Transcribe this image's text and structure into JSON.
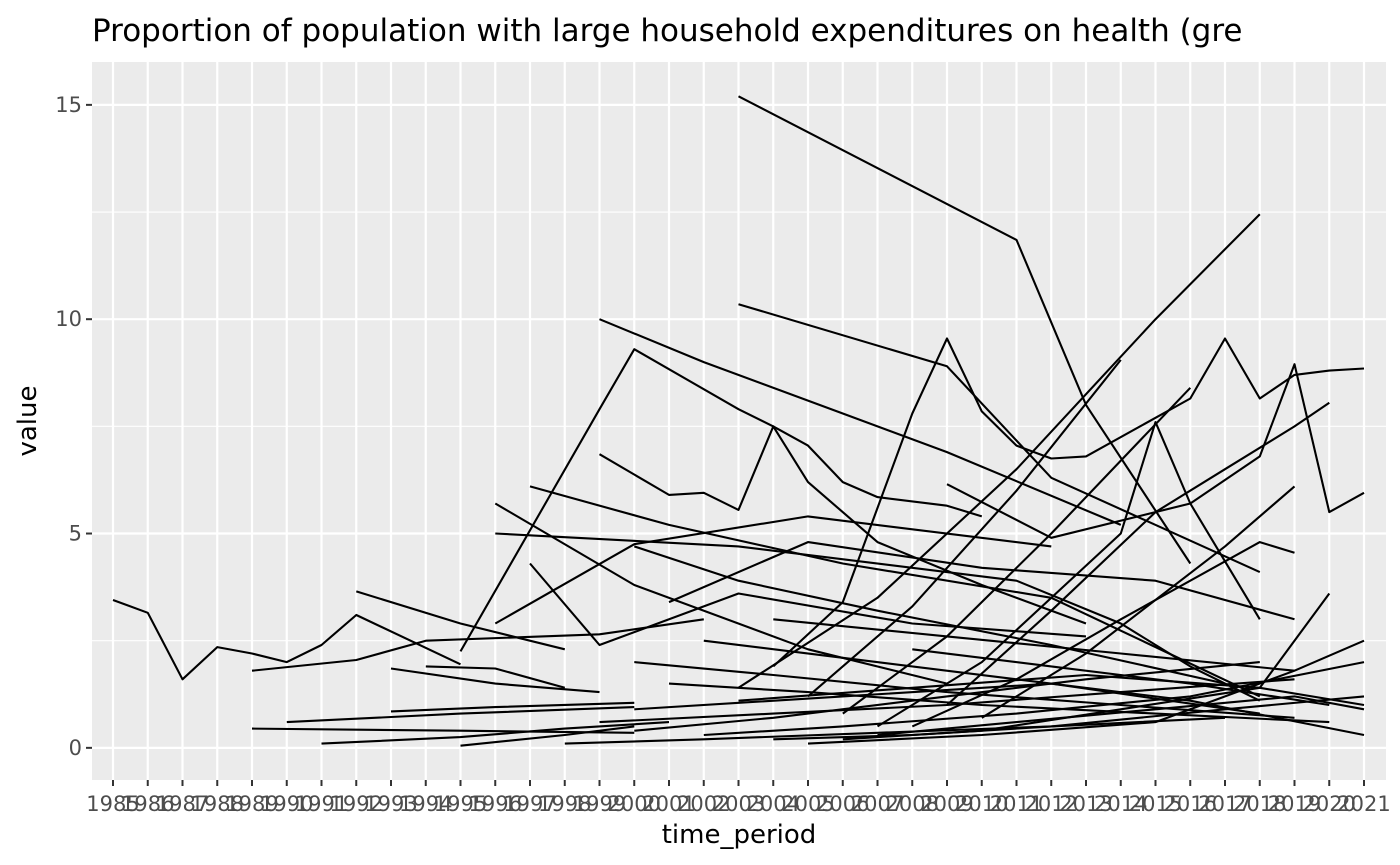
{
  "chart_data": {
    "type": "line",
    "title": "Proportion of population with large household expenditures on health (gre",
    "xlabel": "time_period",
    "ylabel": "value",
    "x_ticks": [
      "1985",
      "1986",
      "1987",
      "1988",
      "1989",
      "1990",
      "1991",
      "1992",
      "1993",
      "1994",
      "1995",
      "1996",
      "1997",
      "1998",
      "1999",
      "2000",
      "2001",
      "2002",
      "2003",
      "2004",
      "2005",
      "2006",
      "2007",
      "2008",
      "2009",
      "2010",
      "2011",
      "2012",
      "2013",
      "2014",
      "2015",
      "2016",
      "2017",
      "2018",
      "2019",
      "2020",
      "2021"
    ],
    "y_ticks": [
      0,
      5,
      10,
      15
    ],
    "ylim": [
      -0.75,
      16.0
    ],
    "grid": true,
    "panel_background": "#ebebeb",
    "grid_color": "#ffffff",
    "line_color": "#000000",
    "series": [
      {
        "x": [
          1985,
          1986,
          1987,
          1988,
          1989,
          1990,
          1991,
          1992,
          1995
        ],
        "y": [
          3.45,
          3.15,
          1.6,
          2.35,
          2.2,
          2.0,
          2.4,
          3.1,
          1.95
        ]
      },
      {
        "x": [
          1992,
          1995,
          1998
        ],
        "y": [
          3.65,
          2.9,
          2.3
        ]
      },
      {
        "x": [
          1989,
          1992,
          1994,
          1999,
          2002
        ],
        "y": [
          1.8,
          2.05,
          2.5,
          2.65,
          3.0
        ]
      },
      {
        "x": [
          1989,
          1995,
          2000
        ],
        "y": [
          0.45,
          0.4,
          0.35
        ]
      },
      {
        "x": [
          1990,
          1995,
          2000
        ],
        "y": [
          0.6,
          0.8,
          0.95
        ]
      },
      {
        "x": [
          1991,
          1995,
          1998,
          2001
        ],
        "y": [
          0.1,
          0.25,
          0.45,
          0.6
        ]
      },
      {
        "x": [
          1995,
          1998,
          2000
        ],
        "y": [
          0.05,
          0.3,
          0.5
        ]
      },
      {
        "x": [
          1993,
          1996,
          1999
        ],
        "y": [
          1.85,
          1.5,
          1.3
        ]
      },
      {
        "x": [
          1993,
          1996,
          2000
        ],
        "y": [
          0.85,
          0.95,
          1.05
        ]
      },
      {
        "x": [
          1994,
          1996,
          1998
        ],
        "y": [
          1.9,
          1.85,
          1.4
        ]
      },
      {
        "x": [
          1995,
          1999,
          2000,
          2003,
          2004,
          2005,
          2006,
          2007,
          2009,
          2010
        ],
        "y": [
          2.25,
          7.9,
          9.3,
          7.9,
          7.5,
          7.05,
          6.2,
          5.85,
          5.65,
          5.4
        ]
      },
      {
        "x": [
          1996,
          2003,
          2011,
          2014,
          2016,
          2018
        ],
        "y": [
          5.0,
          4.7,
          3.9,
          2.9,
          1.9,
          1.1
        ]
      },
      {
        "x": [
          1996,
          2000,
          2005,
          2009
        ],
        "y": [
          5.7,
          3.8,
          2.3,
          1.5
        ]
      },
      {
        "x": [
          1996,
          2000,
          2005,
          2012
        ],
        "y": [
          2.9,
          4.75,
          5.4,
          4.7
        ]
      },
      {
        "x": [
          1997,
          2001,
          2006,
          2012,
          2018
        ],
        "y": [
          6.1,
          5.2,
          4.3,
          3.5,
          1.2
        ]
      },
      {
        "x": [
          1997,
          1999,
          2003,
          2008,
          2013
        ],
        "y": [
          4.3,
          2.4,
          3.6,
          2.9,
          2.6
        ]
      },
      {
        "x": [
          1999,
          2001,
          2002,
          2003,
          2004,
          2005,
          2007,
          2010,
          2013
        ],
        "y": [
          6.85,
          5.9,
          5.95,
          5.55,
          7.5,
          6.2,
          4.8,
          3.8,
          2.9
        ]
      },
      {
        "x": [
          1999,
          2002,
          2006,
          2009,
          2014
        ],
        "y": [
          10.0,
          9.0,
          7.8,
          6.9,
          5.2
        ]
      },
      {
        "x": [
          2003,
          2011,
          2013,
          2016
        ],
        "y": [
          15.2,
          11.85,
          8.0,
          4.3
        ]
      },
      {
        "x": [
          2003,
          2009,
          2012,
          2018
        ],
        "y": [
          10.35,
          8.9,
          6.3,
          4.1
        ]
      },
      {
        "x": [
          2004,
          2006,
          2008,
          2009,
          2010,
          2011,
          2012,
          2013,
          2016,
          2017,
          2018,
          2019,
          2020,
          2021
        ],
        "y": [
          1.9,
          3.4,
          7.8,
          9.55,
          7.85,
          7.05,
          6.75,
          6.8,
          8.15,
          9.55,
          8.15,
          8.7,
          8.8,
          8.85
        ]
      },
      {
        "x": [
          2003,
          2007,
          2011,
          2015,
          2018
        ],
        "y": [
          1.4,
          3.5,
          6.5,
          10.0,
          12.45
        ]
      },
      {
        "x": [
          2005,
          2008,
          2011,
          2014
        ],
        "y": [
          1.2,
          3.3,
          6.0,
          9.05
        ]
      },
      {
        "x": [
          2006,
          2009,
          2012,
          2016
        ],
        "y": [
          0.8,
          2.6,
          5.0,
          8.4
        ]
      },
      {
        "x": [
          2007,
          2010,
          2014,
          2015,
          2016,
          2018
        ],
        "y": [
          0.5,
          2.0,
          5.0,
          7.6,
          5.7,
          3.0
        ]
      },
      {
        "x": [
          2009,
          2012,
          2015,
          2017,
          2019,
          2020
        ],
        "y": [
          1.0,
          3.2,
          5.5,
          6.5,
          7.5,
          8.05
        ]
      },
      {
        "x": [
          2009,
          2012,
          2016,
          2018,
          2019,
          2020,
          2021
        ],
        "y": [
          6.15,
          4.9,
          5.7,
          6.8,
          8.95,
          5.5,
          5.95
        ]
      },
      {
        "x": [
          2010,
          2013,
          2017,
          2019
        ],
        "y": [
          0.7,
          2.2,
          4.7,
          6.1
        ]
      },
      {
        "x": [
          2008,
          2011,
          2014,
          2018,
          2019
        ],
        "y": [
          0.5,
          1.6,
          3.0,
          4.8,
          4.55
        ]
      },
      {
        "x": [
          2001,
          2005,
          2010,
          2015,
          2019
        ],
        "y": [
          3.4,
          4.8,
          4.2,
          3.9,
          3.0
        ]
      },
      {
        "x": [
          2000,
          2004,
          2008,
          2013,
          2018
        ],
        "y": [
          0.4,
          0.7,
          1.1,
          1.6,
          2.0
        ]
      },
      {
        "x": [
          2000,
          2003,
          2007,
          2012,
          2017
        ],
        "y": [
          4.7,
          3.9,
          3.2,
          2.4,
          1.5
        ]
      },
      {
        "x": [
          2002,
          2006,
          2011,
          2016,
          2021
        ],
        "y": [
          0.3,
          0.5,
          0.8,
          1.2,
          2.0
        ]
      },
      {
        "x": [
          2004,
          2008,
          2012,
          2017,
          2021
        ],
        "y": [
          0.2,
          0.3,
          0.5,
          0.9,
          1.2
        ]
      },
      {
        "x": [
          2005,
          2010,
          2015,
          2019,
          2021
        ],
        "y": [
          0.1,
          0.3,
          0.6,
          1.8,
          2.5
        ]
      },
      {
        "x": [
          2006,
          2010,
          2014,
          2018,
          2020
        ],
        "y": [
          0.2,
          0.4,
          0.9,
          1.4,
          3.6
        ]
      },
      {
        "x": [
          2001,
          2005,
          2010,
          2015,
          2020
        ],
        "y": [
          1.5,
          1.3,
          1.0,
          0.8,
          0.6
        ]
      },
      {
        "x": [
          2000,
          2004,
          2009,
          2014,
          2019
        ],
        "y": [
          2.0,
          1.7,
          1.3,
          1.0,
          0.7
        ]
      },
      {
        "x": [
          2002,
          2006,
          2011,
          2016,
          2021
        ],
        "y": [
          2.5,
          2.1,
          1.6,
          1.1,
          0.3
        ]
      },
      {
        "x": [
          1998,
          2002,
          2007,
          2012,
          2017
        ],
        "y": [
          0.1,
          0.2,
          0.35,
          0.5,
          0.7
        ]
      },
      {
        "x": [
          2003,
          2008,
          2013,
          2018,
          2021
        ],
        "y": [
          1.1,
          1.4,
          1.7,
          1.4,
          1.0
        ]
      },
      {
        "x": [
          1999,
          2004,
          2009,
          2014,
          2019
        ],
        "y": [
          0.6,
          0.8,
          1.0,
          1.3,
          1.6
        ]
      },
      {
        "x": [
          2007,
          2011,
          2015,
          2019,
          2021
        ],
        "y": [
          0.3,
          0.6,
          0.9,
          1.2,
          0.9
        ]
      },
      {
        "x": [
          2004,
          2009,
          2014,
          2019
        ],
        "y": [
          3.0,
          2.6,
          2.2,
          1.8
        ]
      },
      {
        "x": [
          2000,
          2006,
          2012,
          2018
        ],
        "y": [
          0.9,
          1.2,
          1.5,
          0.8
        ]
      },
      {
        "x": [
          2008,
          2012,
          2016,
          2020
        ],
        "y": [
          2.3,
          1.9,
          1.5,
          1.0
        ]
      }
    ]
  }
}
